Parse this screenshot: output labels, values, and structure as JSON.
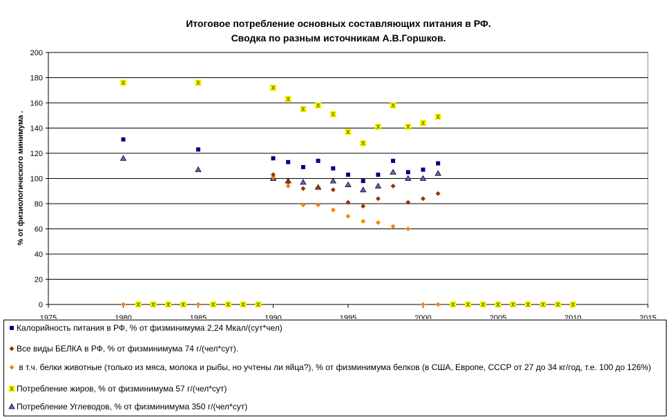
{
  "chart_data": {
    "type": "scatter",
    "title_lines": [
      "Итоговое потребление основных составляющих питания в РФ.",
      "Сводка по разным источникам А.В.Горшков."
    ],
    "ylabel": "% от физиологического минимума  .",
    "xlabel": "",
    "xlim": [
      1975,
      2015
    ],
    "ylim": [
      0,
      200
    ],
    "x_ticks": [
      1975,
      1980,
      1985,
      1990,
      1995,
      2000,
      2005,
      2010,
      2015
    ],
    "y_ticks": [
      0,
      20,
      40,
      60,
      80,
      100,
      120,
      140,
      160,
      180,
      200
    ],
    "grid": "horizontal",
    "legend_position": "bottom",
    "series": [
      {
        "name": "Калорийность питания в РФ, % от физминимума 2,24 Мкал/(сут*чел)",
        "marker": "square",
        "color": "#000080",
        "points": [
          [
            1980,
            131
          ],
          [
            1985,
            123
          ],
          [
            1990,
            116
          ],
          [
            1991,
            113
          ],
          [
            1992,
            109
          ],
          [
            1993,
            114
          ],
          [
            1994,
            108
          ],
          [
            1995,
            103
          ],
          [
            1996,
            98
          ],
          [
            1997,
            103
          ],
          [
            1998,
            114
          ],
          [
            1999,
            105
          ],
          [
            2000,
            107
          ],
          [
            2001,
            112
          ]
        ]
      },
      {
        "name": "Все виды БЕЛКА в РФ, % от физминимума 74 г/(чел*сут).",
        "marker": "diamond",
        "color": "#993300",
        "points": [
          [
            1990,
            103
          ],
          [
            1991,
            97
          ],
          [
            1992,
            92
          ],
          [
            1993,
            93
          ],
          [
            1994,
            91
          ],
          [
            1995,
            81
          ],
          [
            1996,
            78
          ],
          [
            1997,
            84
          ],
          [
            1998,
            94
          ],
          [
            1999,
            81
          ],
          [
            2000,
            84
          ],
          [
            2001,
            88
          ]
        ]
      },
      {
        "name": " в т.ч. белки животные (только из мяса, молока и рыбы, но учтены ли яйца?), % от физминимума белков (в США, Европе, СССР от 27 до 34 кг/год, т.е. 100 до 126%)",
        "marker": "diamond",
        "color": "#FF8000",
        "points": [
          [
            1980,
            0
          ],
          [
            1985,
            0
          ],
          [
            1990,
            101
          ],
          [
            1991,
            94
          ],
          [
            1992,
            79
          ],
          [
            1993,
            79
          ],
          [
            1994,
            75
          ],
          [
            1995,
            70
          ],
          [
            1996,
            66
          ],
          [
            1997,
            65
          ],
          [
            1998,
            62
          ],
          [
            1999,
            60
          ],
          [
            2000,
            0
          ],
          [
            2001,
            0
          ]
        ]
      },
      {
        "name": "Потребление жиров, % от физминимума 57 г/(чел*сут)",
        "marker": "star",
        "color": "#FFFF00",
        "stroke": "#808000",
        "points": [
          [
            1980,
            176
          ],
          [
            1981,
            0
          ],
          [
            1982,
            0
          ],
          [
            1983,
            0
          ],
          [
            1984,
            0
          ],
          [
            1985,
            176
          ],
          [
            1986,
            0
          ],
          [
            1987,
            0
          ],
          [
            1988,
            0
          ],
          [
            1989,
            0
          ],
          [
            1990,
            172
          ],
          [
            1991,
            163
          ],
          [
            1992,
            155
          ],
          [
            1993,
            158
          ],
          [
            1994,
            151
          ],
          [
            1995,
            137
          ],
          [
            1996,
            128
          ],
          [
            1997,
            141
          ],
          [
            1998,
            158
          ],
          [
            1999,
            141
          ],
          [
            2000,
            144
          ],
          [
            2001,
            149
          ],
          [
            2002,
            0
          ],
          [
            2003,
            0
          ],
          [
            2004,
            0
          ],
          [
            2005,
            0
          ],
          [
            2006,
            0
          ],
          [
            2007,
            0
          ],
          [
            2008,
            0
          ],
          [
            2009,
            0
          ],
          [
            2010,
            0
          ]
        ]
      },
      {
        "name": "Потребление Углеводов, % от физминимума 350 г/(чел*сут)",
        "marker": "triangle",
        "color": "#6666CC",
        "points": [
          [
            1980,
            116
          ],
          [
            1985,
            107
          ],
          [
            1990,
            100
          ],
          [
            1991,
            98
          ],
          [
            1992,
            97
          ],
          [
            1993,
            93
          ],
          [
            1994,
            98
          ],
          [
            1995,
            95
          ],
          [
            1996,
            91
          ],
          [
            1997,
            94
          ],
          [
            1998,
            105
          ],
          [
            1999,
            100
          ],
          [
            2000,
            100
          ],
          [
            2001,
            104
          ]
        ]
      }
    ]
  }
}
